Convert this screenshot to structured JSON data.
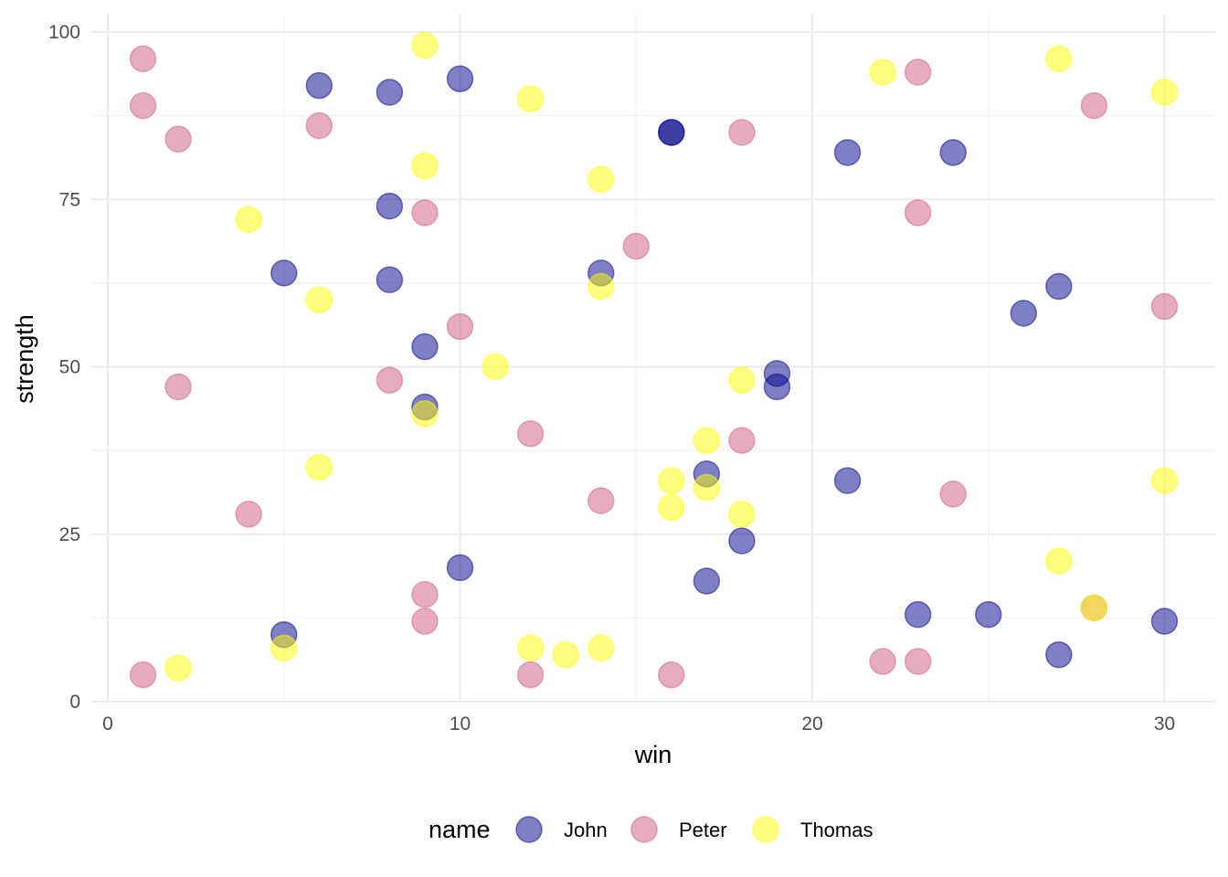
{
  "chart_data": {
    "type": "scatter",
    "xlabel": "win",
    "ylabel": "strength",
    "xlim": [
      0,
      31.5
    ],
    "ylim": [
      0,
      100
    ],
    "x_ticks": [
      0,
      10,
      20,
      30
    ],
    "y_ticks": [
      0,
      25,
      50,
      75,
      100
    ],
    "grid": true,
    "legend": {
      "title": "name",
      "position": "bottom"
    },
    "series": [
      {
        "name": "John",
        "color": "#00008b",
        "points": [
          [
            6,
            92
          ],
          [
            8,
            91
          ],
          [
            10,
            93
          ],
          [
            16,
            85
          ],
          [
            16,
            85
          ],
          [
            21,
            82
          ],
          [
            24,
            82
          ],
          [
            8,
            74
          ],
          [
            5,
            64
          ],
          [
            8,
            63
          ],
          [
            14,
            64
          ],
          [
            27,
            62
          ],
          [
            26,
            58
          ],
          [
            9,
            53
          ],
          [
            19,
            49
          ],
          [
            19,
            47
          ],
          [
            9,
            44
          ],
          [
            17,
            34
          ],
          [
            21,
            33
          ],
          [
            18,
            24
          ],
          [
            10,
            20
          ],
          [
            17,
            18
          ],
          [
            23,
            13
          ],
          [
            25,
            13
          ],
          [
            30,
            12
          ],
          [
            5,
            10
          ],
          [
            27,
            7
          ]
        ]
      },
      {
        "name": "Peter",
        "color": "#cd5c82",
        "points": [
          [
            1,
            96
          ],
          [
            1,
            89
          ],
          [
            2,
            84
          ],
          [
            6,
            86
          ],
          [
            18,
            85
          ],
          [
            23,
            94
          ],
          [
            28,
            89
          ],
          [
            9,
            73
          ],
          [
            23,
            73
          ],
          [
            15,
            68
          ],
          [
            10,
            56
          ],
          [
            30,
            59
          ],
          [
            2,
            47
          ],
          [
            8,
            48
          ],
          [
            12,
            40
          ],
          [
            18,
            39
          ],
          [
            14,
            30
          ],
          [
            24,
            31
          ],
          [
            4,
            28
          ],
          [
            9,
            16
          ],
          [
            9,
            12
          ],
          [
            28,
            14
          ],
          [
            1,
            4
          ],
          [
            12,
            4
          ],
          [
            16,
            4
          ],
          [
            22,
            6
          ],
          [
            23,
            6
          ]
        ]
      },
      {
        "name": "Thomas",
        "color": "#ffff00",
        "points": [
          [
            9,
            98
          ],
          [
            12,
            90
          ],
          [
            22,
            94
          ],
          [
            27,
            96
          ],
          [
            30,
            91
          ],
          [
            9,
            80
          ],
          [
            14,
            78
          ],
          [
            4,
            72
          ],
          [
            6,
            60
          ],
          [
            14,
            62
          ],
          [
            11,
            50
          ],
          [
            18,
            48
          ],
          [
            9,
            43
          ],
          [
            17,
            39
          ],
          [
            6,
            35
          ],
          [
            16,
            33
          ],
          [
            17,
            32
          ],
          [
            16,
            29
          ],
          [
            18,
            28
          ],
          [
            30,
            33
          ],
          [
            27,
            21
          ],
          [
            5,
            8
          ],
          [
            12,
            8
          ],
          [
            13,
            7
          ],
          [
            14,
            8
          ],
          [
            2,
            5
          ],
          [
            28,
            14
          ]
        ]
      }
    ]
  }
}
